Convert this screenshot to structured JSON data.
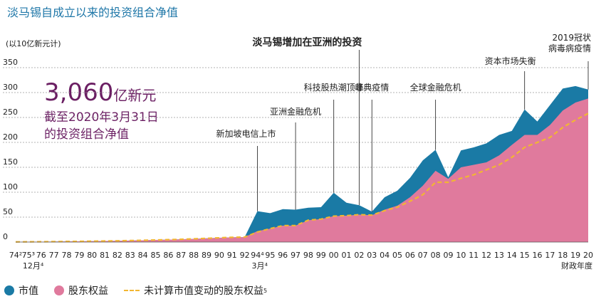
{
  "title": "淡马锡自成立以来的投资组合净值",
  "unit_label": "(以10亿新元计)",
  "highlight": {
    "value": "3,060",
    "unit": "亿新元",
    "line1": "截至2020年3月31日",
    "line2": "的投资组合净值"
  },
  "chart_data": {
    "type": "area",
    "title": "淡马锡自成立以来的投资组合净值",
    "ylabel": "(以10亿新元计)",
    "xlabel": "财政年度",
    "ylim": [
      0,
      350
    ],
    "yticks": [
      0,
      50,
      100,
      150,
      200,
      250,
      300,
      350
    ],
    "categories": [
      "74",
      "75",
      "76",
      "77",
      "78",
      "79",
      "80",
      "81",
      "82",
      "83",
      "84",
      "85",
      "86",
      "87",
      "88",
      "89",
      "90",
      "91",
      "92",
      "94",
      "95",
      "96",
      "97",
      "98",
      "99",
      "00",
      "01",
      "02",
      "03",
      "04",
      "05",
      "06",
      "07",
      "08",
      "09",
      "10",
      "11",
      "12",
      "13",
      "14",
      "15",
      "16",
      "17",
      "18",
      "19",
      "20"
    ],
    "tick_labels": [
      "74²",
      "75³",
      "76",
      "77",
      "78",
      "79",
      "80",
      "81",
      "82",
      "83",
      "84",
      "85",
      "86",
      "87",
      "88",
      "89",
      "90",
      "91",
      "92",
      "94⁴",
      "95",
      "96",
      "97",
      "98",
      "99",
      "00",
      "01",
      "02",
      "03",
      "04",
      "05",
      "06",
      "07",
      "08",
      "09",
      "10",
      "11",
      "12",
      "13",
      "14",
      "15",
      "16",
      "17",
      "18",
      "19",
      "20"
    ],
    "sub_labels": [
      {
        "at": "75",
        "text": "12月⁴"
      },
      {
        "at": "94",
        "text": "3月⁴"
      }
    ],
    "series": [
      {
        "name": "市值",
        "color": "#1a7aa5",
        "values": [
          0.4,
          0.5,
          0.7,
          0.9,
          1.2,
          1.4,
          1.8,
          2.1,
          2.5,
          3.0,
          3.5,
          4.2,
          4.8,
          5.5,
          6.5,
          7.5,
          8.5,
          9.5,
          10,
          62,
          58,
          66,
          65,
          69,
          70,
          99,
          79,
          74,
          61,
          90,
          103,
          129,
          164,
          185,
          130,
          184,
          190,
          198,
          215,
          223,
          266,
          242,
          275,
          308,
          313,
          306
        ]
      },
      {
        "name": "股东权益",
        "color": "#e07a9d",
        "values": [
          0.4,
          0.5,
          0.7,
          0.9,
          1.2,
          1.4,
          1.8,
          2.1,
          2.5,
          3.0,
          3.5,
          4.2,
          4.8,
          5.5,
          6.5,
          7.5,
          8.5,
          9.5,
          10,
          22,
          27,
          33,
          33,
          44,
          46,
          52,
          53,
          55,
          54,
          65,
          73,
          90,
          113,
          143,
          127,
          150,
          155,
          160,
          174,
          195,
          215,
          215,
          235,
          264,
          280,
          288
        ]
      },
      {
        "name": "未计算市值变动的股东权益⁵",
        "color": "#f2b632",
        "dashed": true,
        "values": [
          0.4,
          0.5,
          0.7,
          0.9,
          1.2,
          1.4,
          1.8,
          2.1,
          2.5,
          3.0,
          3.5,
          4.2,
          4.8,
          5.5,
          6.5,
          7.5,
          8.5,
          9.5,
          10,
          20,
          27,
          33,
          33,
          44,
          46,
          52,
          53,
          55,
          54,
          63,
          70,
          82,
          95,
          120,
          120,
          128,
          135,
          145,
          155,
          170,
          190,
          200,
          210,
          230,
          245,
          258
        ]
      }
    ],
    "annotations": [
      {
        "text": "新加坡电信上市",
        "at": "94"
      },
      {
        "text": "亚洲金融危机",
        "at": "97"
      },
      {
        "text": "科技股热潮顶峰",
        "at": "00"
      },
      {
        "text": "淡马锡增加在亚洲的投资",
        "at": "02",
        "bold": true
      },
      {
        "text": "非典疫情",
        "at": "03"
      },
      {
        "text": "全球金融危机",
        "at": "08"
      },
      {
        "text": "资本市场失衡",
        "at": "15"
      },
      {
        "text": "2019冠状",
        "at": "20",
        "line2": "病毒病疫情"
      }
    ]
  },
  "legend": [
    {
      "label": "市值",
      "color": "#1a7aa5"
    },
    {
      "label": "股东权益",
      "color": "#e07a9d"
    },
    {
      "label": "未计算市值变动的股东权益",
      "sup": "5",
      "color": "#f2b632"
    }
  ]
}
